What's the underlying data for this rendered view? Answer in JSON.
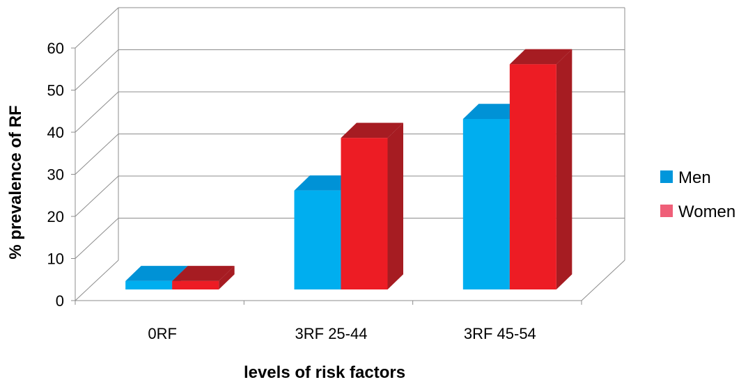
{
  "chart_data": {
    "type": "bar",
    "style": "3d-clustered-column",
    "categories": [
      "0RF",
      "3RF 25-44",
      "3RF 45-54"
    ],
    "series": [
      {
        "name": "Men",
        "values": [
          2,
          23.5,
          40.5
        ],
        "color": "#00aeef",
        "top_color": "#0092d6",
        "side_color": "#008ac8"
      },
      {
        "name": "Women",
        "values": [
          2,
          36,
          53.5
        ],
        "color": "#ed1c24",
        "top_color": "#a61c22",
        "side_color": "#a61c22"
      }
    ],
    "xlabel": "levels of risk factors",
    "ylabel": "% prevalence of RF",
    "ylim": [
      0,
      60
    ],
    "yticks": [
      "0",
      "10",
      "20",
      "30",
      "40",
      "50",
      "60"
    ],
    "grid": true,
    "legend": "right",
    "legend_swatch_colors": [
      "#0096db",
      "#ef5f78"
    ]
  }
}
